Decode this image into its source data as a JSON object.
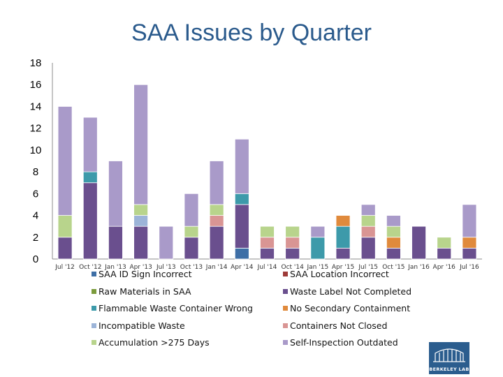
{
  "chart_data": {
    "type": "bar",
    "stacked": true,
    "title": "SAA Issues by Quarter",
    "xlabel": "",
    "ylabel": "",
    "ylim": [
      0,
      18
    ],
    "yticks": [
      0,
      2,
      4,
      6,
      8,
      10,
      12,
      14,
      16,
      18
    ],
    "grid": false,
    "categories": [
      "Jul '12",
      "Oct '12",
      "Jan '13",
      "Apr '13",
      "Jul '13",
      "Oct '13",
      "Jan '14",
      "Apr '14",
      "Jul '14",
      "Oct '14",
      "Jan '15",
      "Apr '15",
      "Jul '15",
      "Oct '15",
      "Jan '16",
      "Apr '16",
      "Jul '16"
    ],
    "series": [
      {
        "name": "SAA ID Sign Incorrect",
        "color": "#3e6fa6",
        "values": [
          0,
          0,
          0,
          0,
          0,
          0,
          0,
          1,
          0,
          0,
          0,
          0,
          0,
          0,
          0,
          0,
          0
        ]
      },
      {
        "name": "SAA Location Incorrect",
        "color": "#9e3b38",
        "values": [
          0,
          0,
          0,
          0,
          0,
          0,
          0,
          0,
          0,
          0,
          0,
          0,
          0,
          0,
          0,
          0,
          0
        ]
      },
      {
        "name": "Raw Materials in SAA",
        "color": "#7b9b3c",
        "values": [
          0,
          0,
          0,
          0,
          0,
          0,
          0,
          0,
          0,
          0,
          0,
          0,
          0,
          0,
          0,
          0,
          0
        ]
      },
      {
        "name": "Waste Label Not Completed",
        "color": "#6a4f8e",
        "values": [
          2,
          7,
          3,
          3,
          0,
          2,
          3,
          4,
          1,
          1,
          0,
          1,
          2,
          1,
          3,
          1,
          1
        ]
      },
      {
        "name": "Flammable Waste Container Wrong",
        "color": "#3d9aaa",
        "values": [
          0,
          1,
          0,
          0,
          0,
          0,
          0,
          1,
          0,
          0,
          2,
          2,
          0,
          0,
          0,
          0,
          0
        ]
      },
      {
        "name": "No Secondary Containment",
        "color": "#e08a3c",
        "values": [
          0,
          0,
          0,
          0,
          0,
          0,
          0,
          0,
          0,
          0,
          0,
          1,
          0,
          1,
          0,
          0,
          1
        ]
      },
      {
        "name": "Incompatible Waste",
        "color": "#9cb4d8",
        "values": [
          0,
          0,
          0,
          1,
          0,
          0,
          0,
          0,
          0,
          0,
          0,
          0,
          0,
          0,
          0,
          0,
          0
        ]
      },
      {
        "name": "Containers Not Closed",
        "color": "#d99594",
        "values": [
          0,
          0,
          0,
          0,
          0,
          0,
          1,
          0,
          1,
          1,
          0,
          0,
          1,
          0,
          0,
          0,
          0
        ]
      },
      {
        "name": "Accumulation >275 Days",
        "color": "#b8d48c",
        "values": [
          2,
          0,
          0,
          1,
          0,
          1,
          1,
          0,
          1,
          1,
          0,
          0,
          1,
          1,
          0,
          1,
          0
        ]
      },
      {
        "name": "Self-Inspection Outdated",
        "color": "#a99ac9",
        "values": [
          10,
          5,
          6,
          11,
          3,
          3,
          4,
          5,
          0,
          0,
          1,
          0,
          1,
          1,
          0,
          0,
          3
        ]
      }
    ]
  },
  "logo": {
    "text": "BERKELEY LAB"
  }
}
